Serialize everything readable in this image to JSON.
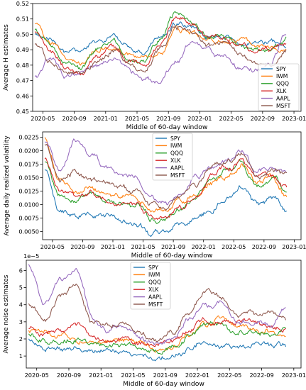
{
  "chart_data": [
    {
      "type": "line",
      "title": "",
      "xlabel": "Middle of 60-day window",
      "ylabel": "Average H estimates",
      "x_ticks": [
        "2020-05",
        "2020-09",
        "2021-01",
        "2021-05",
        "2021-09",
        "2022-01",
        "2022-05",
        "2022-09",
        "2023-01"
      ],
      "y_ticks": [
        "0.45",
        "0.46",
        "0.47",
        "0.48",
        "0.49",
        "0.50",
        "0.51",
        "0.52"
      ],
      "ylim": [
        0.45,
        0.52
      ],
      "legend": "right",
      "x": [
        "2020-04",
        "2020-06",
        "2020-08",
        "2020-10",
        "2020-12",
        "2021-02",
        "2021-04",
        "2021-06",
        "2021-08",
        "2021-10",
        "2021-12",
        "2022-02",
        "2022-04",
        "2022-06",
        "2022-08",
        "2022-10",
        "2022-12"
      ],
      "series": [
        {
          "name": "SPY",
          "color": "#1f77b4",
          "values": [
            0.5,
            0.496,
            0.49,
            0.488,
            0.496,
            0.498,
            0.492,
            0.488,
            0.498,
            0.506,
            0.504,
            0.498,
            0.5,
            0.496,
            0.493,
            0.493,
            0.494
          ]
        },
        {
          "name": "IWM",
          "color": "#ff7f0e",
          "values": [
            0.507,
            0.495,
            0.486,
            0.483,
            0.49,
            0.494,
            0.486,
            0.483,
            0.49,
            0.505,
            0.502,
            0.494,
            0.497,
            0.495,
            0.492,
            0.49,
            0.489
          ]
        },
        {
          "name": "QQQ",
          "color": "#2ca02c",
          "values": [
            0.503,
            0.493,
            0.483,
            0.478,
            0.49,
            0.494,
            0.485,
            0.48,
            0.496,
            0.513,
            0.508,
            0.498,
            0.5,
            0.494,
            0.491,
            0.492,
            0.497
          ]
        },
        {
          "name": "XLK",
          "color": "#d62728",
          "values": [
            0.502,
            0.488,
            0.478,
            0.475,
            0.487,
            0.492,
            0.482,
            0.478,
            0.494,
            0.511,
            0.506,
            0.497,
            0.499,
            0.493,
            0.49,
            0.49,
            0.494
          ]
        },
        {
          "name": "AAPL",
          "color": "#9467bd",
          "values": [
            0.472,
            0.483,
            0.473,
            0.476,
            0.48,
            0.484,
            0.476,
            0.471,
            0.47,
            0.482,
            0.496,
            0.49,
            0.486,
            0.478,
            0.477,
            0.482,
            0.5
          ]
        },
        {
          "name": "MSFT",
          "color": "#8c564b",
          "values": [
            0.493,
            0.482,
            0.476,
            0.474,
            0.483,
            0.49,
            0.48,
            0.476,
            0.49,
            0.506,
            0.502,
            0.494,
            0.497,
            0.49,
            0.483,
            0.48,
            0.49
          ]
        }
      ]
    },
    {
      "type": "line",
      "title": "",
      "xlabel": "Middle of 60-day window",
      "ylabel": "Average daily realized volatility",
      "x_ticks": [
        "2020-05",
        "2020-09",
        "2021-01",
        "2021-05",
        "2021-09",
        "2022-01",
        "2022-05",
        "2022-09",
        "2023-01"
      ],
      "y_ticks": [
        "0.0050",
        "0.0075",
        "0.0100",
        "0.0125",
        "0.0150",
        "0.0175",
        "0.0200",
        "0.0225"
      ],
      "ylim": [
        0.0035,
        0.0235
      ],
      "legend": "top-center",
      "x": [
        "2020-04",
        "2020-06",
        "2020-08",
        "2020-10",
        "2020-12",
        "2021-02",
        "2021-04",
        "2021-06",
        "2021-08",
        "2021-10",
        "2021-12",
        "2022-02",
        "2022-04",
        "2022-06",
        "2022-08",
        "2022-10",
        "2022-12"
      ],
      "series": [
        {
          "name": "SPY",
          "color": "#1f77b4",
          "values": [
            0.0165,
            0.0095,
            0.008,
            0.0085,
            0.0075,
            0.007,
            0.0068,
            0.005,
            0.0048,
            0.0062,
            0.0075,
            0.009,
            0.0118,
            0.0132,
            0.0098,
            0.0115,
            0.0092
          ]
        },
        {
          "name": "IWM",
          "color": "#ff7f0e",
          "values": [
            0.0225,
            0.015,
            0.0125,
            0.013,
            0.012,
            0.0115,
            0.0112,
            0.009,
            0.0088,
            0.0105,
            0.012,
            0.014,
            0.015,
            0.017,
            0.014,
            0.015,
            0.0115
          ]
        },
        {
          "name": "QQQ",
          "color": "#2ca02c",
          "values": [
            0.018,
            0.012,
            0.011,
            0.0118,
            0.0105,
            0.01,
            0.0098,
            0.0075,
            0.0072,
            0.009,
            0.0115,
            0.015,
            0.0165,
            0.0175,
            0.014,
            0.015,
            0.013
          ]
        },
        {
          "name": "XLK",
          "color": "#d62728",
          "values": [
            0.0185,
            0.0125,
            0.0112,
            0.012,
            0.0108,
            0.0102,
            0.01,
            0.0078,
            0.0075,
            0.0093,
            0.0118,
            0.0152,
            0.0168,
            0.0178,
            0.0142,
            0.0152,
            0.0132
          ]
        },
        {
          "name": "AAPL",
          "color": "#9467bd",
          "values": [
            0.0215,
            0.016,
            0.022,
            0.019,
            0.0165,
            0.016,
            0.0148,
            0.0112,
            0.01,
            0.012,
            0.015,
            0.017,
            0.018,
            0.0205,
            0.0165,
            0.017,
            0.0165
          ]
        },
        {
          "name": "MSFT",
          "color": "#8c564b",
          "values": [
            0.021,
            0.014,
            0.0162,
            0.0145,
            0.014,
            0.0132,
            0.0125,
            0.0098,
            0.0095,
            0.0112,
            0.0138,
            0.0165,
            0.0178,
            0.019,
            0.015,
            0.0165,
            0.016
          ]
        }
      ]
    },
    {
      "type": "line",
      "title": "",
      "xlabel": "Middle of 60-day window",
      "ylabel": "Average noise estimates",
      "scale_label": "1e−5",
      "x_ticks": [
        "2020-05",
        "2020-09",
        "2021-01",
        "2021-05",
        "2021-09",
        "2022-01",
        "2022-05",
        "2022-09",
        "2023-01"
      ],
      "y_ticks": [
        "1",
        "2",
        "3",
        "4",
        "5",
        "6"
      ],
      "ylim": [
        0.3,
        6.6
      ],
      "legend": "top-center",
      "x": [
        "2020-04",
        "2020-06",
        "2020-08",
        "2020-10",
        "2020-12",
        "2021-02",
        "2021-04",
        "2021-06",
        "2021-08",
        "2021-10",
        "2021-12",
        "2022-02",
        "2022-04",
        "2022-06",
        "2022-08",
        "2022-10",
        "2022-12"
      ],
      "series": [
        {
          "name": "SPY",
          "color": "#1f77b4",
          "values": [
            2.0,
            1.5,
            1.4,
            1.5,
            1.3,
            1.3,
            1.2,
            1.0,
            0.8,
            1.0,
            1.4,
            1.9,
            1.6,
            1.6,
            1.7,
            1.6,
            1.6
          ]
        },
        {
          "name": "IWM",
          "color": "#ff7f0e",
          "values": [
            2.5,
            2.4,
            2.2,
            2.0,
            1.8,
            1.8,
            2.0,
            1.6,
            1.3,
            1.6,
            2.2,
            2.8,
            3.3,
            3.0,
            2.5,
            2.3,
            2.2
          ]
        },
        {
          "name": "QQQ",
          "color": "#2ca02c",
          "values": [
            2.3,
            2.0,
            2.1,
            2.1,
            1.8,
            1.7,
            1.8,
            1.5,
            1.3,
            1.6,
            2.2,
            2.8,
            2.7,
            2.3,
            2.3,
            2.4,
            2.7
          ]
        },
        {
          "name": "XLK",
          "color": "#d62728",
          "values": [
            2.6,
            2.3,
            2.5,
            2.8,
            2.2,
            2.0,
            2.0,
            1.8,
            1.5,
            1.8,
            2.6,
            3.2,
            3.0,
            3.0,
            2.8,
            2.6,
            2.7
          ]
        },
        {
          "name": "AAPL",
          "color": "#9467bd",
          "values": [
            6.3,
            4.0,
            5.5,
            5.9,
            3.2,
            2.6,
            2.8,
            2.0,
            1.6,
            2.0,
            3.2,
            4.0,
            4.2,
            3.0,
            2.9,
            2.8,
            3.9
          ]
        },
        {
          "name": "MSFT",
          "color": "#8c564b",
          "values": [
            4.0,
            3.0,
            4.5,
            5.0,
            3.0,
            2.8,
            2.9,
            2.2,
            1.8,
            2.3,
            3.6,
            4.8,
            4.3,
            3.3,
            3.4,
            3.6,
            3.0
          ]
        }
      ]
    }
  ]
}
